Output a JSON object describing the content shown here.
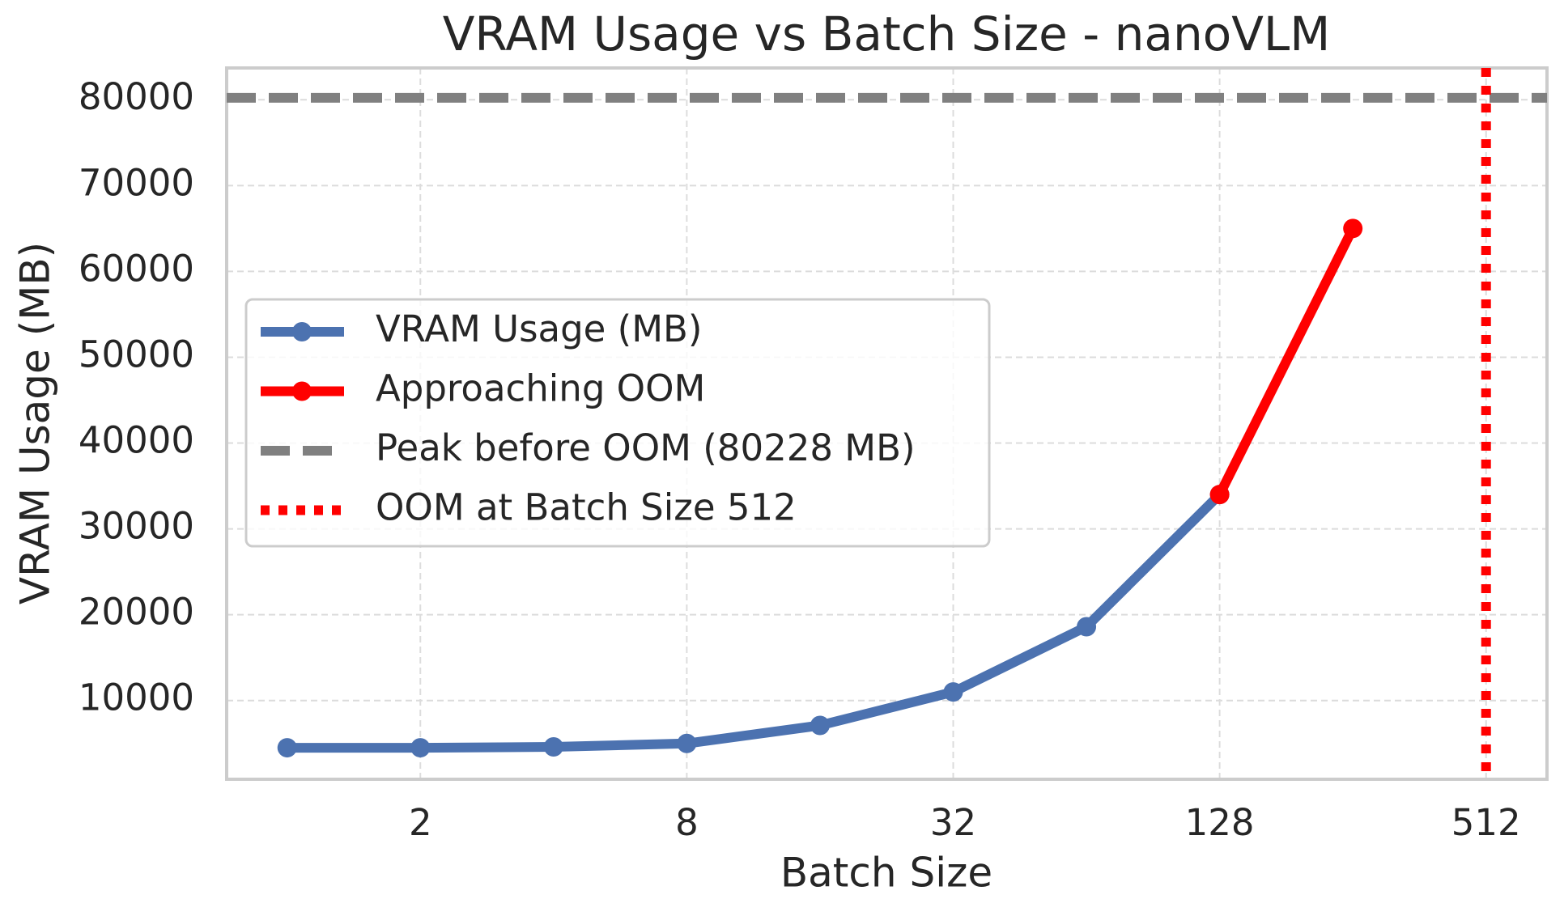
{
  "chart_data": {
    "type": "line",
    "title": "VRAM Usage vs Batch Size - nanoVLM",
    "x_label": "Batch Size",
    "y_label": "VRAM Usage (MB)",
    "xscale": "log2",
    "xlim": [
      0.73,
      703
    ],
    "xticks": [
      2,
      8,
      32,
      128,
      512
    ],
    "ylim": [
      830,
      83700
    ],
    "yticks": [
      10000,
      20000,
      30000,
      40000,
      50000,
      60000,
      70000,
      80000
    ],
    "grid": true,
    "legend_position": "center-left",
    "series": [
      {
        "name": "VRAM Usage (MB)",
        "color": "#4c72b0",
        "x": [
          1,
          2,
          4,
          8,
          16,
          32,
          64,
          128
        ],
        "values": [
          4500,
          4500,
          4600,
          5000,
          7100,
          11000,
          18600,
          34000
        ]
      },
      {
        "name": "Approaching OOM",
        "color": "#ff0000",
        "x": [
          128,
          256
        ],
        "values": [
          34000,
          65000
        ]
      }
    ],
    "reference_lines": [
      {
        "name": "Peak before OOM (80228 MB)",
        "orientation": "horizontal",
        "value": 80228,
        "color": "#808080",
        "style": "dashed"
      },
      {
        "name": "OOM at Batch Size 512",
        "orientation": "vertical",
        "value": 512,
        "color": "#ff0000",
        "style": "dotted"
      }
    ]
  }
}
